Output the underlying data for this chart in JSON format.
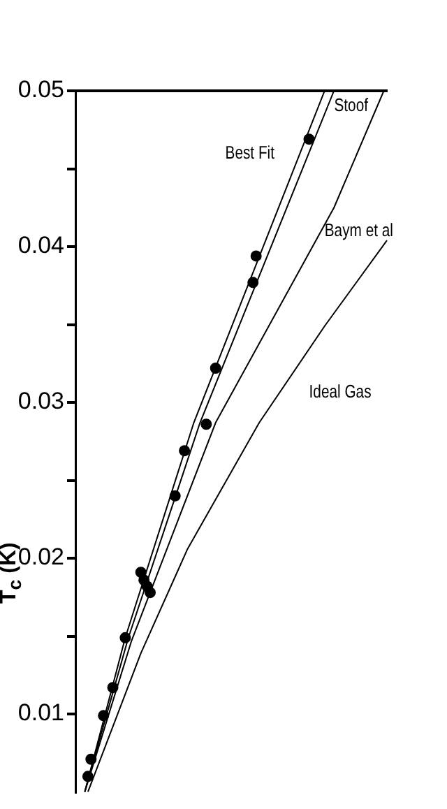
{
  "chart_data": {
    "type": "line",
    "ylabel": "T$_{c}$ (K)",
    "categories": [
      null,
      null,
      null,
      null,
      null,
      null,
      null,
      null,
      null,
      null,
      null,
      null,
      null,
      null,
      null,
      null,
      null,
      null,
      null,
      null,
      null,
      null,
      null,
      null,
      null,
      null,
      null,
      null,
      null,
      null,
      null,
      null,
      null,
      null,
      null,
      null,
      null,
      null,
      null,
      null,
      null,
      null,
      null,
      null,
      null,
      null,
      null,
      null,
      null,
      null,
      null,
      null,
      null,
      null,
      null,
      null,
      null,
      null,
      null,
      null,
      null,
      null,
      null,
      null,
      null,
      null,
      null,
      null,
      null,
      null,
      null,
      null,
      null,
      null,
      null,
      null,
      null,
      null,
      null,
      null,
      null,
      null,
      null,
      null,
      null,
      null,
      null,
      null,
      null,
      null,
      null,
      null,
      null,
      null,
      null,
      null,
      null,
      null,
      null,
      null,
      null
    ],
    "ylim": [
      0.005,
      0.05
    ],
    "yticks": [
      0.01,
      {
        "value": 0.015,
        "label": null
      },
      0.02,
      {
        "value": 0.025,
        "label": null
      },
      0.03,
      {
        "value": 0.035,
        "label": null
      },
      0.04,
      {
        "value": 0.045,
        "label": null
      },
      0.05
    ],
    "tick_labels": "y",
    "grid": false,
    "series": [
      {
        "type": "scatter",
        "color": "#000000",
        "marker": "circle",
        "values": [
          null,
          null,
          null,
          null,
          0.006,
          0.0071,
          null,
          null,
          null,
          0.0099,
          null,
          null,
          0.0117,
          null,
          null,
          null,
          0.0149,
          null,
          null,
          null,
          null,
          0.0191,
          0.0186,
          0.0182,
          0.0178,
          null,
          null,
          null,
          null,
          null,
          null,
          null,
          0.024,
          null,
          null,
          0.0269,
          null,
          null,
          null,
          null,
          null,
          null,
          0.0286,
          null,
          null,
          0.0322,
          null,
          null,
          null,
          null,
          null,
          null,
          null,
          null,
          null,
          null,
          null,
          0.0377,
          0.0394,
          null,
          null,
          null,
          null,
          null,
          null,
          null,
          null,
          null,
          null,
          null,
          null,
          null,
          null,
          null,
          null,
          0.0469,
          null,
          null,
          null,
          null,
          null,
          null,
          null,
          null,
          null,
          null,
          null,
          null,
          null,
          null,
          null,
          null,
          null,
          null,
          null,
          null,
          null,
          null,
          null,
          null,
          null
        ]
      },
      {
        "name": "Best Fit",
        "color": "#000000",
        "values": [
          null,
          null,
          null,
          0.005,
          null,
          null,
          null,
          null,
          null,
          null,
          null,
          null,
          null,
          null,
          null,
          null,
          0.0149,
          null,
          null,
          null,
          null,
          null,
          null,
          null,
          null,
          null,
          null,
          null,
          null,
          null,
          null,
          null,
          null,
          null,
          null,
          null,
          null,
          null,
          0.0287,
          null,
          null,
          null,
          null,
          null,
          null,
          null,
          null,
          null,
          null,
          null,
          null,
          null,
          null,
          null,
          null,
          null,
          null,
          null,
          null,
          null,
          null,
          null,
          null,
          null,
          null,
          null,
          null,
          null,
          null,
          null,
          null,
          null,
          null,
          null,
          null,
          null,
          null,
          null,
          null,
          null,
          0.05,
          null,
          null,
          null,
          null,
          null,
          null,
          null,
          null,
          null,
          null,
          null,
          null,
          null,
          null,
          null,
          null,
          null,
          null,
          null,
          null
        ]
      },
      {
        "name": "Stoof",
        "color": "#000000",
        "values": [
          null,
          null,
          null,
          0.005,
          null,
          null,
          null,
          null,
          null,
          null,
          null,
          null,
          null,
          null,
          null,
          null,
          null,
          0.0149,
          null,
          null,
          null,
          null,
          null,
          null,
          null,
          null,
          null,
          null,
          null,
          null,
          null,
          null,
          null,
          null,
          null,
          null,
          null,
          null,
          null,
          null,
          0.0287,
          null,
          null,
          null,
          null,
          null,
          null,
          null,
          null,
          null,
          null,
          null,
          null,
          null,
          null,
          null,
          null,
          null,
          null,
          null,
          null,
          null,
          null,
          null,
          null,
          null,
          null,
          null,
          null,
          null,
          null,
          null,
          null,
          null,
          null,
          null,
          null,
          null,
          null,
          null,
          null,
          null,
          null,
          0.05,
          null,
          null,
          null,
          null,
          null,
          null,
          null,
          null,
          null,
          null,
          null,
          null,
          null,
          null,
          null,
          null,
          null
        ]
      },
      {
        "name": "Baym et al",
        "color": "#000000",
        "values": [
          null,
          null,
          null,
          0.005,
          null,
          null,
          null,
          null,
          null,
          null,
          null,
          null,
          null,
          null,
          null,
          null,
          null,
          null,
          0.0147,
          null,
          null,
          null,
          null,
          null,
          null,
          null,
          null,
          null,
          null,
          null,
          null,
          null,
          null,
          null,
          null,
          null,
          null,
          null,
          null,
          null,
          null,
          null,
          null,
          null,
          null,
          0.0287,
          null,
          null,
          null,
          null,
          null,
          null,
          null,
          null,
          null,
          null,
          null,
          null,
          null,
          null,
          null,
          null,
          null,
          null,
          null,
          null,
          null,
          null,
          null,
          null,
          null,
          null,
          null,
          null,
          null,
          null,
          null,
          null,
          null,
          null,
          null,
          null,
          null,
          0.0425,
          null,
          null,
          null,
          null,
          null,
          null,
          null,
          null,
          null,
          null,
          null,
          null,
          null,
          null,
          null,
          0.05,
          null
        ]
      },
      {
        "name": "Ideal Gas",
        "color": "#000000",
        "values": [
          null,
          null,
          null,
          null,
          0.005,
          null,
          null,
          null,
          null,
          null,
          null,
          null,
          null,
          null,
          null,
          null,
          null,
          null,
          null,
          null,
          null,
          0.0139,
          null,
          null,
          null,
          null,
          null,
          null,
          null,
          null,
          null,
          null,
          null,
          null,
          null,
          null,
          0.0206,
          null,
          null,
          null,
          null,
          null,
          null,
          null,
          null,
          null,
          null,
          null,
          null,
          null,
          null,
          null,
          null,
          null,
          null,
          null,
          null,
          null,
          null,
          0.0287,
          null,
          null,
          null,
          null,
          null,
          null,
          null,
          null,
          null,
          null,
          null,
          null,
          null,
          null,
          null,
          null,
          null,
          null,
          null,
          null,
          0.0349,
          null,
          null,
          null,
          null,
          null,
          null,
          null,
          null,
          null,
          null,
          null,
          null,
          null,
          null,
          null,
          null,
          null,
          null,
          null,
          0.0404
        ]
      }
    ]
  }
}
